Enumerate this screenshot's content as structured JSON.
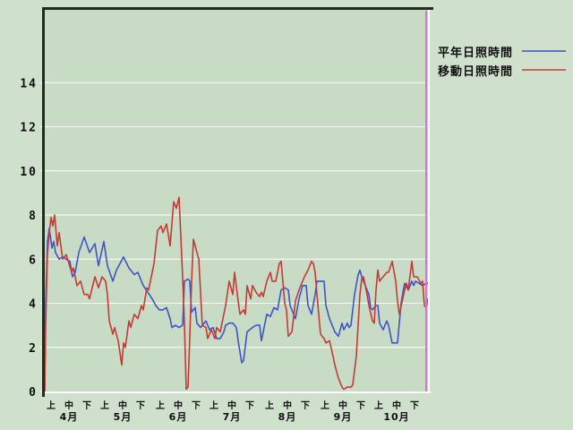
{
  "window": {
    "background_color": "#cfe0cd",
    "plot_background_color": "#c7dbc5",
    "frame_dark_color": "#1b2f1c",
    "frame_light_color": "#ffffff",
    "gridline_color": "#ffffff",
    "text_color": "#101010"
  },
  "legend": {
    "items": [
      {
        "label": "平年日照時間",
        "color": "#6277bd"
      },
      {
        "label": "移動日照時間",
        "color": "#c1685a"
      }
    ]
  },
  "chart_data": {
    "type": "line",
    "title": "",
    "xlabel": "",
    "ylabel": "",
    "x_unit": "days from April 1 (旬: 上/中/下 per month)",
    "x_range": [
      0,
      214
    ],
    "ylim": [
      0,
      17.3
    ],
    "grid": "horizontal-only",
    "legend_position": "outside-right-top",
    "ytick_values": [
      0,
      2,
      4,
      6,
      8,
      10,
      12,
      14
    ],
    "ytick_labels": [
      "0",
      "2",
      "4",
      "6",
      "8",
      "10",
      "12",
      "14"
    ],
    "period_labels": [
      "上",
      "中",
      "下"
    ],
    "period_day_offsets": [
      3.5,
      13.5,
      23.5
    ],
    "months": [
      {
        "label": "4月",
        "start_day": 0,
        "days": 30
      },
      {
        "label": "5月",
        "start_day": 30,
        "days": 31
      },
      {
        "label": "6月",
        "start_day": 61,
        "days": 30
      },
      {
        "label": "7月",
        "start_day": 91,
        "days": 31
      },
      {
        "label": "8月",
        "start_day": 122,
        "days": 31
      },
      {
        "label": "9月",
        "start_day": 153,
        "days": 30
      },
      {
        "label": "10月",
        "start_day": 183,
        "days": 31
      }
    ],
    "marker_line": {
      "color": "#e070d8",
      "x_day": 213
    },
    "series": [
      {
        "name": "平年日照時間",
        "color": "#4054c8",
        "points": [
          [
            0,
            0
          ],
          [
            0.5,
            4
          ],
          [
            1.5,
            6.8
          ],
          [
            2.5,
            7.4
          ],
          [
            4,
            6.5
          ],
          [
            5,
            6.8
          ],
          [
            6,
            6.3
          ],
          [
            8,
            6.0
          ],
          [
            10,
            6.1
          ],
          [
            12,
            6.0
          ],
          [
            14,
            5.9
          ],
          [
            15.5,
            5.2
          ],
          [
            17,
            5.4
          ],
          [
            19,
            6.3
          ],
          [
            22,
            7.0
          ],
          [
            25,
            6.3
          ],
          [
            28,
            6.7
          ],
          [
            30,
            5.7
          ],
          [
            33,
            6.8
          ],
          [
            35,
            5.7
          ],
          [
            38,
            5.0
          ],
          [
            40,
            5.5
          ],
          [
            42,
            5.8
          ],
          [
            44,
            6.1
          ],
          [
            47,
            5.6
          ],
          [
            50,
            5.3
          ],
          [
            52,
            5.4
          ],
          [
            55,
            4.8
          ],
          [
            60,
            4.2
          ],
          [
            62,
            3.9
          ],
          [
            64,
            3.7
          ],
          [
            66,
            3.7
          ],
          [
            68,
            3.8
          ],
          [
            70,
            3.3
          ],
          [
            71,
            2.9
          ],
          [
            73,
            3.0
          ],
          [
            75,
            2.9
          ],
          [
            77,
            3.0
          ],
          [
            78,
            5.0
          ],
          [
            80,
            5.1
          ],
          [
            81,
            5.0
          ],
          [
            82,
            3.6
          ],
          [
            84,
            3.8
          ],
          [
            85,
            3.1
          ],
          [
            87,
            2.9
          ],
          [
            90,
            3.2
          ],
          [
            92,
            2.8
          ],
          [
            94,
            2.9
          ],
          [
            96,
            2.4
          ],
          [
            98,
            2.4
          ],
          [
            100,
            2.7
          ],
          [
            101,
            3.0
          ],
          [
            103,
            3.1
          ],
          [
            105,
            3.1
          ],
          [
            107,
            2.9
          ],
          [
            108,
            2.3
          ],
          [
            110,
            1.3
          ],
          [
            111,
            1.4
          ],
          [
            113,
            2.7
          ],
          [
            116,
            2.9
          ],
          [
            118,
            3.0
          ],
          [
            120,
            3.0
          ],
          [
            121,
            2.3
          ],
          [
            124,
            3.5
          ],
          [
            126,
            3.4
          ],
          [
            128,
            3.8
          ],
          [
            130,
            3.7
          ],
          [
            132,
            4.6
          ],
          [
            134,
            4.7
          ],
          [
            136,
            4.6
          ],
          [
            137,
            3.9
          ],
          [
            139,
            3.5
          ],
          [
            140,
            3.3
          ],
          [
            142,
            4.2
          ],
          [
            144,
            4.8
          ],
          [
            146,
            4.8
          ],
          [
            147,
            3.9
          ],
          [
            149,
            3.5
          ],
          [
            151,
            4.4
          ],
          [
            152,
            5.0
          ],
          [
            154,
            5.0
          ],
          [
            156,
            5.0
          ],
          [
            157,
            3.9
          ],
          [
            159,
            3.3
          ],
          [
            161,
            2.9
          ],
          [
            162,
            2.7
          ],
          [
            164,
            2.5
          ],
          [
            166,
            3.1
          ],
          [
            167,
            2.8
          ],
          [
            169,
            3.1
          ],
          [
            170,
            2.9
          ],
          [
            171,
            3.0
          ],
          [
            173,
            4.4
          ],
          [
            175,
            5.3
          ],
          [
            176,
            5.5
          ],
          [
            177,
            5.2
          ],
          [
            179,
            4.8
          ],
          [
            181,
            4.4
          ],
          [
            182,
            3.8
          ],
          [
            183,
            3.7
          ],
          [
            185,
            3.9
          ],
          [
            186,
            3.9
          ],
          [
            187,
            3.1
          ],
          [
            189,
            2.8
          ],
          [
            191,
            3.2
          ],
          [
            192,
            3.0
          ],
          [
            194,
            2.2
          ],
          [
            196,
            2.2
          ],
          [
            197,
            2.2
          ],
          [
            199,
            4.0
          ],
          [
            200,
            4.5
          ],
          [
            201,
            4.9
          ],
          [
            203,
            4.6
          ],
          [
            205,
            5.0
          ],
          [
            206,
            4.8
          ],
          [
            207,
            5.0
          ],
          [
            209,
            4.9
          ],
          [
            211,
            4.8
          ],
          [
            213,
            4.9
          ],
          [
            214,
            4.9
          ]
        ]
      },
      {
        "name": "移動日照時間",
        "color": "#c63a35",
        "points": [
          [
            0,
            0
          ],
          [
            0.5,
            3
          ],
          [
            1.5,
            6.2
          ],
          [
            2.5,
            7.2
          ],
          [
            3.5,
            7.9
          ],
          [
            4.5,
            7.5
          ],
          [
            5.5,
            8.0
          ],
          [
            7,
            6.6
          ],
          [
            8,
            7.2
          ],
          [
            10,
            6.0
          ],
          [
            12,
            6.2
          ],
          [
            15,
            5.4
          ],
          [
            16,
            5.6
          ],
          [
            18,
            4.8
          ],
          [
            20,
            5.0
          ],
          [
            22,
            4.4
          ],
          [
            24,
            4.4
          ],
          [
            25,
            4.2
          ],
          [
            28,
            5.2
          ],
          [
            30,
            4.7
          ],
          [
            32,
            5.2
          ],
          [
            34,
            5.0
          ],
          [
            35,
            4.4
          ],
          [
            36,
            3.2
          ],
          [
            38,
            2.6
          ],
          [
            39,
            2.9
          ],
          [
            41,
            2.3
          ],
          [
            43,
            1.2
          ],
          [
            44,
            2.2
          ],
          [
            45,
            2.0
          ],
          [
            47,
            3.2
          ],
          [
            48,
            2.9
          ],
          [
            50,
            3.5
          ],
          [
            52,
            3.3
          ],
          [
            54,
            3.9
          ],
          [
            55,
            3.7
          ],
          [
            57,
            4.7
          ],
          [
            58,
            4.6
          ],
          [
            61,
            5.8
          ],
          [
            63,
            7.3
          ],
          [
            65,
            7.5
          ],
          [
            66,
            7.2
          ],
          [
            68,
            7.6
          ],
          [
            70,
            6.6
          ],
          [
            72,
            8.6
          ],
          [
            73.5,
            8.3
          ],
          [
            75,
            8.8
          ],
          [
            77,
            5.2
          ],
          [
            78,
            3.1
          ],
          [
            79,
            0.1
          ],
          [
            80,
            0.2
          ],
          [
            81,
            2.5
          ],
          [
            82,
            5.0
          ],
          [
            83,
            6.9
          ],
          [
            84,
            6.6
          ],
          [
            86,
            6.0
          ],
          [
            88,
            3.0
          ],
          [
            90,
            2.9
          ],
          [
            91,
            2.4
          ],
          [
            93,
            2.8
          ],
          [
            95,
            2.4
          ],
          [
            96,
            2.9
          ],
          [
            98,
            2.7
          ],
          [
            101,
            3.9
          ],
          [
            103,
            5.0
          ],
          [
            105,
            4.4
          ],
          [
            106,
            5.4
          ],
          [
            108,
            4.1
          ],
          [
            109,
            3.5
          ],
          [
            111,
            3.7
          ],
          [
            112,
            3.5
          ],
          [
            113,
            4.8
          ],
          [
            115,
            4.2
          ],
          [
            116,
            4.8
          ],
          [
            118,
            4.5
          ],
          [
            120,
            4.3
          ],
          [
            121,
            4.5
          ],
          [
            122,
            4.3
          ],
          [
            124,
            5.0
          ],
          [
            126,
            5.4
          ],
          [
            127,
            5.0
          ],
          [
            129,
            5.0
          ],
          [
            131,
            5.8
          ],
          [
            132,
            5.9
          ],
          [
            134,
            4.0
          ],
          [
            135,
            3.7
          ],
          [
            136,
            2.5
          ],
          [
            138,
            2.7
          ],
          [
            140,
            4.1
          ],
          [
            142,
            4.6
          ],
          [
            145,
            5.2
          ],
          [
            147,
            5.5
          ],
          [
            149,
            5.9
          ],
          [
            150,
            5.8
          ],
          [
            151,
            5.4
          ],
          [
            152,
            4.4
          ],
          [
            154,
            2.6
          ],
          [
            156,
            2.4
          ],
          [
            157,
            2.2
          ],
          [
            159,
            2.3
          ],
          [
            161,
            1.6
          ],
          [
            162,
            1.2
          ],
          [
            164,
            0.6
          ],
          [
            166,
            0.2
          ],
          [
            167,
            0.1
          ],
          [
            169,
            0.2
          ],
          [
            171,
            0.2
          ],
          [
            172,
            0.3
          ],
          [
            174,
            1.6
          ],
          [
            175,
            3.0
          ],
          [
            176,
            4.4
          ],
          [
            177,
            5.1
          ],
          [
            178,
            5.2
          ],
          [
            180,
            4.4
          ],
          [
            181,
            3.9
          ],
          [
            183,
            3.2
          ],
          [
            184,
            3.1
          ],
          [
            185,
            4.6
          ],
          [
            186,
            5.5
          ],
          [
            187,
            5.0
          ],
          [
            188,
            5.1
          ],
          [
            191,
            5.4
          ],
          [
            192,
            5.4
          ],
          [
            194,
            5.9
          ],
          [
            196,
            5.0
          ],
          [
            197,
            4.1
          ],
          [
            198,
            3.5
          ],
          [
            201,
            4.6
          ],
          [
            202,
            4.9
          ],
          [
            203,
            4.6
          ],
          [
            205,
            5.9
          ],
          [
            206,
            5.2
          ],
          [
            208,
            5.2
          ],
          [
            210,
            4.9
          ],
          [
            211,
            5.0
          ],
          [
            212,
            3.9
          ],
          [
            213,
            3.8
          ],
          [
            214,
            4.2
          ]
        ]
      }
    ]
  }
}
